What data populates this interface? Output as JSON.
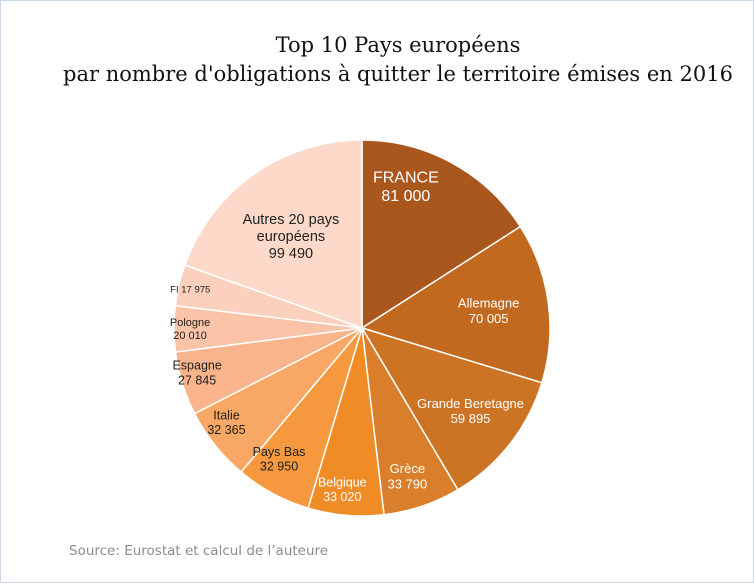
{
  "chart_data": {
    "type": "pie",
    "title": "Top 10 Pays européens",
    "subtitle": "par nombre d'obligations à quitter le territoire émises en 2016",
    "source": "Source: Eurostat et calcul de l’auteure",
    "slices": [
      {
        "label": "FRANCE",
        "value": 81000,
        "value_text": "81 000",
        "color": "#a9571c"
      },
      {
        "label": "Allemagne",
        "value": 70005,
        "value_text": "70 005",
        "color": "#c16a1f"
      },
      {
        "label": "Grande Beretagne",
        "value": 59895,
        "value_text": "59 895",
        "color": "#cd7424"
      },
      {
        "label": "Grèce",
        "value": 33790,
        "value_text": "33 790",
        "color": "#d97e2a"
      },
      {
        "label": "Belgique",
        "value": 33020,
        "value_text": "33 020",
        "color": "#f08c25"
      },
      {
        "label": "Pays Bas",
        "value": 32950,
        "value_text": "32 950",
        "color": "#f5983e"
      },
      {
        "label": "Italie",
        "value": 32365,
        "value_text": "32 365",
        "color": "#f8a864"
      },
      {
        "label": "Espagne",
        "value": 27845,
        "value_text": "27 845",
        "color": "#f9b48c"
      },
      {
        "label": "Pologne",
        "value": 20010,
        "value_text": "20 010",
        "color": "#fbc3a8"
      },
      {
        "label": "FI",
        "value": 17975,
        "value_text": "17 975",
        "color": "#fbd0bc"
      },
      {
        "label": "Autres 20 pays européens",
        "value": 99490,
        "value_text": "99 490",
        "color": "#fcd9c9"
      }
    ]
  }
}
